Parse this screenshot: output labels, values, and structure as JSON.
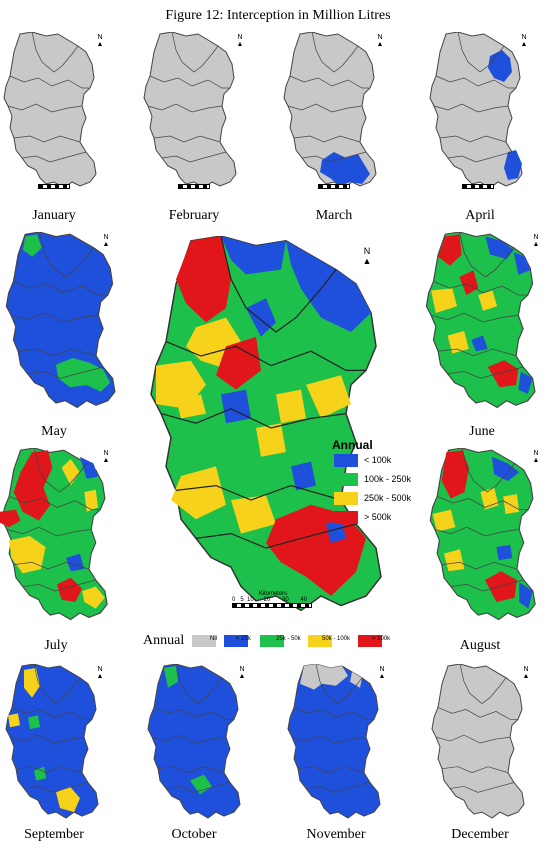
{
  "title": "Figure 12: Interception in Million Litres",
  "months": {
    "jan": "January",
    "feb": "February",
    "mar": "March",
    "apr": "April",
    "may": "May",
    "jun": "June",
    "jul": "July",
    "aug": "August",
    "sep": "September",
    "oct": "October",
    "nov": "November",
    "dec": "December"
  },
  "colors": {
    "nil": "#c8c8c8",
    "blue": "#1e50dc",
    "green": "#1cc04a",
    "yellow": "#f7d21a",
    "red": "#e0161a",
    "outline": "#444444"
  },
  "monthly_legend": {
    "title": "Annual",
    "items": [
      "Nil",
      "< 25k",
      "25k - 50k",
      "50k - 100k",
      "> 100k"
    ]
  },
  "annual_legend": {
    "title": "Annual",
    "items": [
      "< 100k",
      "100k - 250k",
      "250k - 500k",
      "> 500k"
    ]
  },
  "north_label": "N",
  "scale": {
    "title": "Kilometers",
    "ticks": "0   5  10      20       30       40"
  }
}
